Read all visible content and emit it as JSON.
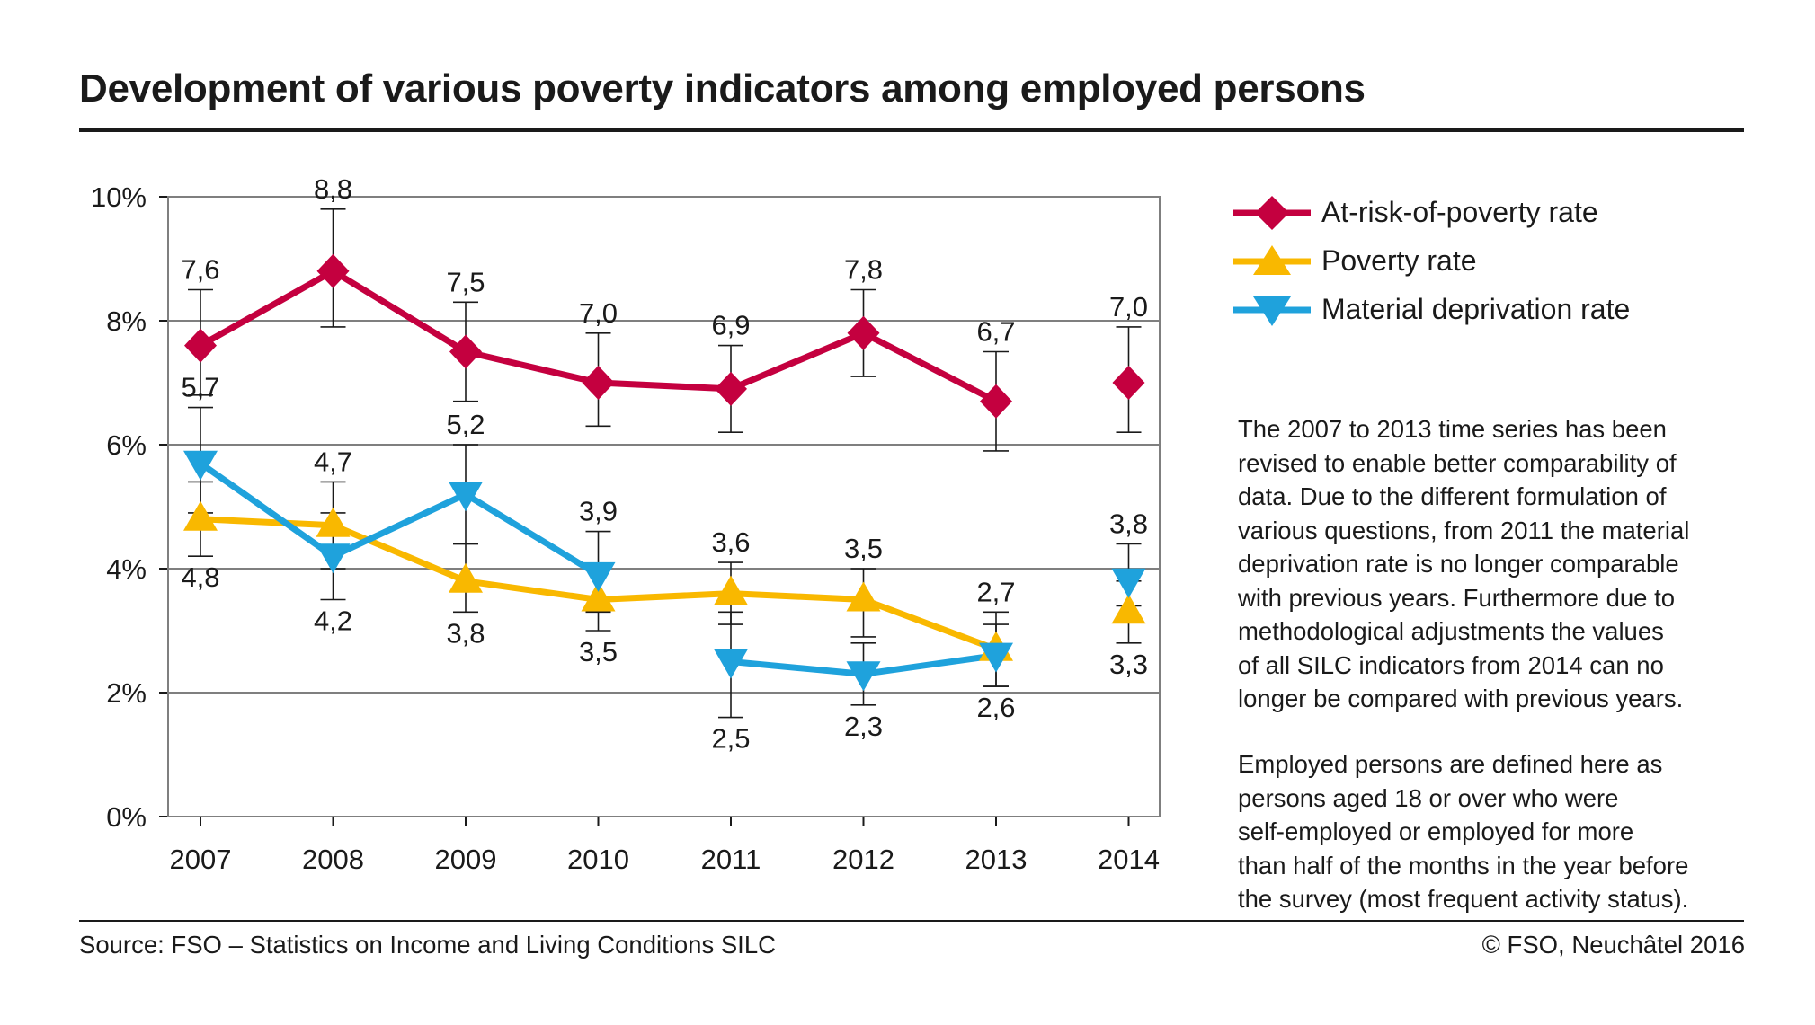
{
  "title": "Development of various poverty indicators among employed persons",
  "legend": {
    "at_risk": "At-risk-of-poverty rate",
    "poverty": "Poverty rate",
    "deprivation": "Material deprivation rate"
  },
  "notes": {
    "note1": "The 2007 to 2013 time series has been\nrevised to enable better comparability of\ndata. Due to the different formulation of\nvarious questions, from 2011 the material\ndeprivation rate is no longer comparable\nwith previous years. Furthermore due to\nmethodological adjustments the values\nof all SILC indicators from 2014 can no\nlonger be compared with previous years.",
    "note2": "Employed persons are defined here as\npersons aged 18 or over who were\nself-employed or employed for more\nthan half of the months in the year before\nthe survey (most frequent activity status)."
  },
  "source": "Source: FSO – Statistics on Income and Living Conditions SILC",
  "copyright": "© FSO, Neuchâtel 2016",
  "colors": {
    "at_risk": "#c4003f",
    "poverty": "#f9b800",
    "deprivation": "#1fa2dc",
    "grid": "#7f7f7f"
  },
  "chart_data": {
    "type": "line",
    "x": [
      "2007",
      "2008",
      "2009",
      "2010",
      "2011",
      "2012",
      "2013",
      "2014"
    ],
    "ylim": [
      0,
      10
    ],
    "y_ticks": [
      "0%",
      "2%",
      "4%",
      "6%",
      "8%",
      "10%"
    ],
    "grid": true,
    "legend_position": "top-right",
    "series": [
      {
        "name": "At-risk-of-poverty rate",
        "key": "at_risk",
        "marker": "diamond",
        "values": [
          7.6,
          8.8,
          7.5,
          7.0,
          6.9,
          7.8,
          6.7,
          7.0
        ],
        "labels": [
          "7,6",
          "8,8",
          "7,5",
          "7,0",
          "6,9",
          "7,8",
          "6,7",
          "7,0"
        ],
        "err_low": [
          6.8,
          7.9,
          6.7,
          6.3,
          6.2,
          7.1,
          5.9,
          6.2
        ],
        "err_high": [
          8.5,
          9.8,
          8.3,
          7.8,
          7.6,
          8.5,
          7.5,
          7.9
        ],
        "segments": [
          [
            0,
            6
          ]
        ]
      },
      {
        "name": "Poverty rate",
        "key": "poverty",
        "marker": "triangle-up",
        "values": [
          4.8,
          4.7,
          3.8,
          3.5,
          3.6,
          3.5,
          2.7,
          3.3
        ],
        "labels": [
          "4,8",
          "4,7",
          "3,8",
          "3,5",
          "3,6",
          "3,5",
          "2,7",
          "3,3"
        ],
        "err_low": [
          4.2,
          4.0,
          3.3,
          3.0,
          3.1,
          2.9,
          2.1,
          2.8
        ],
        "err_high": [
          5.4,
          5.4,
          4.4,
          4.0,
          4.1,
          4.0,
          3.3,
          3.8
        ],
        "segments": [
          [
            0,
            6
          ]
        ]
      },
      {
        "name": "Material deprivation rate",
        "key": "deprivation",
        "marker": "triangle-down",
        "values": [
          5.7,
          4.2,
          5.2,
          3.9,
          2.5,
          2.3,
          2.6,
          3.8
        ],
        "labels": [
          "5,7",
          "4,2",
          "5,2",
          "3,9",
          "2,5",
          "2,3",
          "2,6",
          "3,8"
        ],
        "err_low": [
          4.9,
          3.5,
          4.4,
          3.3,
          1.6,
          1.8,
          2.1,
          3.4
        ],
        "err_high": [
          6.6,
          4.9,
          6.0,
          4.6,
          3.3,
          2.8,
          3.1,
          4.4
        ],
        "segments": [
          [
            0,
            3
          ],
          [
            4,
            6
          ]
        ]
      }
    ]
  }
}
